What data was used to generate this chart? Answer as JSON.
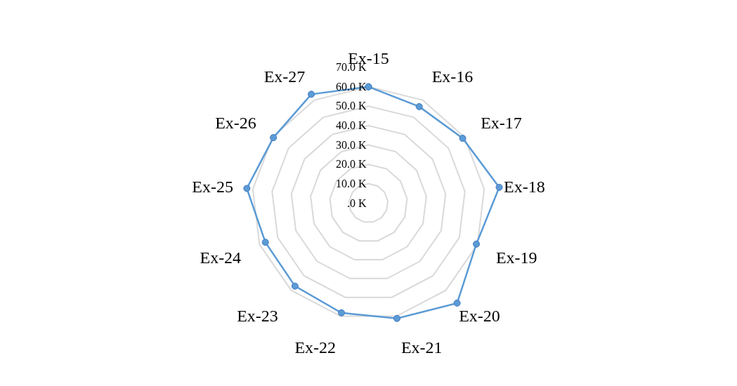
{
  "chart_data": {
    "type": "radar",
    "categories": [
      "Ex-15",
      "Ex-16",
      "Ex-17",
      "Ex-18",
      "Ex-19",
      "Ex-20",
      "Ex-21",
      "Ex-22",
      "Ex-23",
      "Ex-24",
      "Ex-25",
      "Ex-26",
      "Ex-27"
    ],
    "series": [
      {
        "color": "#5b9bd5",
        "values": [
          60.0,
          56.2,
          58.9,
          67.8,
          59.4,
          68.8,
          61.2,
          58.2,
          57.1,
          56.8,
          63.1,
          59.5,
          63.4
        ]
      }
    ],
    "ylim": [
      0,
      70
    ],
    "yticks": [
      {
        "value": 0,
        "label": ".0 K"
      },
      {
        "value": 10,
        "label": "10.0 K"
      },
      {
        "value": 20,
        "label": "20.0 K"
      },
      {
        "value": 30,
        "label": "30.0 K"
      },
      {
        "value": 40,
        "label": "40.0 K"
      },
      {
        "value": 50,
        "label": "50.0 K"
      },
      {
        "value": 60,
        "label": "60.0 K"
      },
      {
        "value": 70,
        "label": "70.0 K"
      }
    ],
    "grid": true,
    "marker": "circle",
    "line_style": "solid"
  }
}
